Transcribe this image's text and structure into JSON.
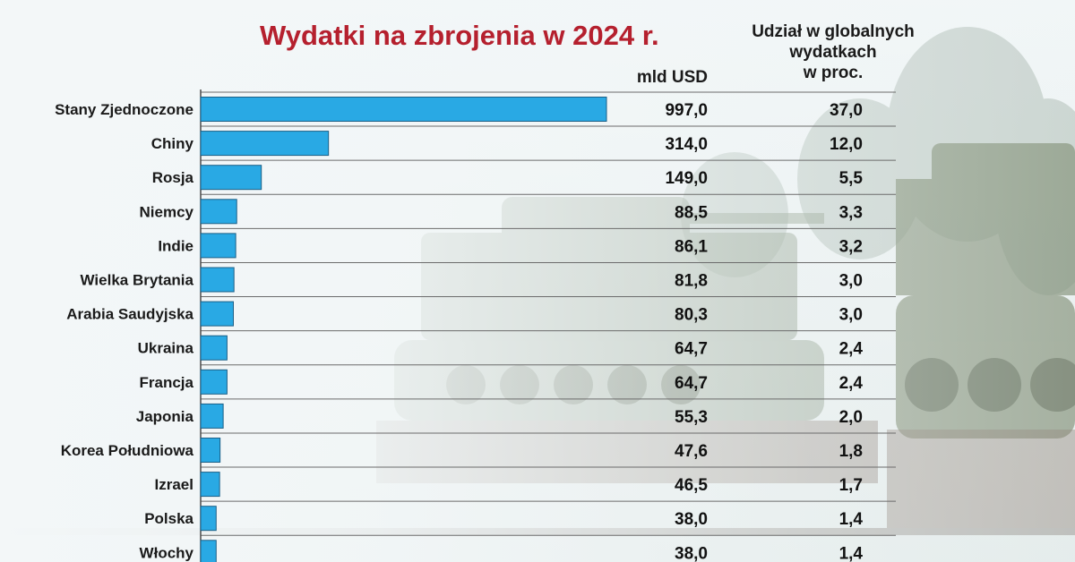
{
  "header": {
    "title": "Wydatki na zbrojenia w 2024 r.",
    "usd_label": "mld USD",
    "share_label_lines": [
      "Udział w globalnych",
      "wydatkach",
      "w proc."
    ]
  },
  "colors": {
    "title": "#b5202e",
    "bar": "#29a9e4",
    "bar_stroke": "#1b5f86"
  },
  "chart_data": {
    "type": "bar",
    "orientation": "horizontal",
    "title": "Wydatki na zbrojenia w 2024 r.",
    "categories": [
      "Stany Zjednoczone",
      "Chiny",
      "Rosja",
      "Niemcy",
      "Indie",
      "Wielka Brytania",
      "Arabia Saudyjska",
      "Ukraina",
      "Francja",
      "Japonia",
      "Korea Południowa",
      "Izrael",
      "Polska",
      "Włochy"
    ],
    "series": [
      {
        "name": "mld USD",
        "values": [
          997.0,
          314.0,
          149.0,
          88.5,
          86.1,
          81.8,
          80.3,
          64.7,
          64.7,
          55.3,
          47.6,
          46.5,
          38.0,
          38.0
        ],
        "labels": [
          "997,0",
          "314,0",
          "149,0",
          "88,5",
          "86,1",
          "81,8",
          "80,3",
          "64,7",
          "64,7",
          "55,3",
          "47,6",
          "46,5",
          "38,0",
          "38,0"
        ]
      },
      {
        "name": "Udział w globalnych wydatkach w proc.",
        "values": [
          37.0,
          12.0,
          5.5,
          3.3,
          3.2,
          3.0,
          3.0,
          2.4,
          2.4,
          2.0,
          1.8,
          1.7,
          1.4,
          1.4
        ],
        "labels": [
          "37,0",
          "12,0",
          "5,5",
          "3,3",
          "3,2",
          "3,0",
          "3,0",
          "2,4",
          "2,4",
          "2,0",
          "1,8",
          "1,7",
          "1,4",
          "1,4"
        ]
      }
    ],
    "xlim": [
      0,
      997.0
    ],
    "grid": true
  }
}
